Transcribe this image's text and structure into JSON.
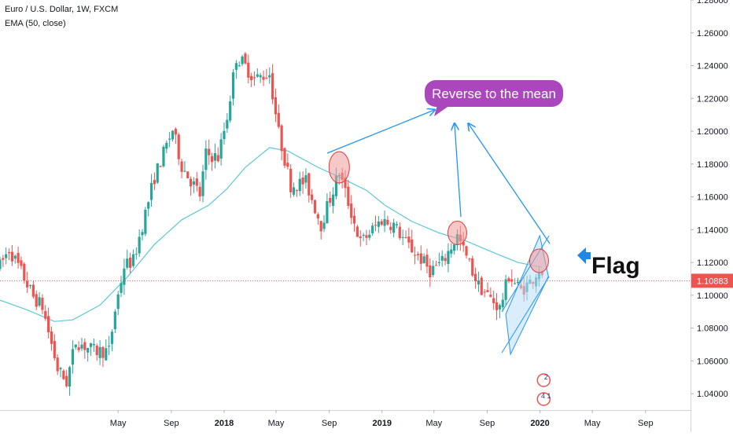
{
  "header": {
    "title": "Euro / U.S. Dollar, 1W, FXCM",
    "indicator": "EMA (50, close)"
  },
  "colors": {
    "up": "#26a69a",
    "down": "#ef5350",
    "ema": "#5bc8d8",
    "current_line": "#ef5350",
    "annotation_arrow": "#2196f3",
    "callout_bg": "#ab47bc",
    "highlight_circle": "#ef9a9a",
    "flag_fill": "#bbdefb",
    "flag_arrow": "#1e88e5"
  },
  "annotations": {
    "callout": "Reverse to the mean",
    "flag": "Flag"
  },
  "event_badges": [
    "2",
    "4 1"
  ],
  "current_price_label": "1.10883",
  "chart_data": {
    "type": "candlestick",
    "x_range": [
      "2016-08-01",
      "2020-12-14"
    ],
    "ylim": [
      1.03,
      1.28
    ],
    "y_ticks": [
      "1.28000",
      "1.26000",
      "1.24000",
      "1.22000",
      "1.20000",
      "1.18000",
      "1.16000",
      "1.14000",
      "1.12000",
      "1.10000",
      "1.08000",
      "1.06000",
      "1.04000"
    ],
    "x_ticks": [
      "May",
      "Sep",
      "2018",
      "May",
      "Sep",
      "2019",
      "May",
      "Sep",
      "2020",
      "May",
      "Sep"
    ],
    "bold_x_ticks": [
      "2018",
      "2019",
      "2020"
    ],
    "current_price": 1.10883,
    "grid": false,
    "series": [
      {
        "name": "EMA (50, close)",
        "type": "line",
        "points": [
          [
            "2016-08-01",
            1.097
          ],
          [
            "2016-10-03",
            1.091
          ],
          [
            "2016-12-05",
            1.084
          ],
          [
            "2017-01-16",
            1.085
          ],
          [
            "2017-03-20",
            1.094
          ],
          [
            "2017-05-22",
            1.111
          ],
          [
            "2017-07-24",
            1.131
          ],
          [
            "2017-09-25",
            1.146
          ],
          [
            "2017-11-27",
            1.155
          ],
          [
            "2018-01-08",
            1.165
          ],
          [
            "2018-02-19",
            1.178
          ],
          [
            "2018-04-16",
            1.19
          ],
          [
            "2018-05-28",
            1.188
          ],
          [
            "2018-08-06",
            1.178
          ],
          [
            "2018-09-17",
            1.173
          ],
          [
            "2018-11-26",
            1.164
          ],
          [
            "2019-01-07",
            1.155
          ],
          [
            "2019-03-11",
            1.145
          ],
          [
            "2019-05-13",
            1.138
          ],
          [
            "2019-07-15",
            1.133
          ],
          [
            "2019-09-16",
            1.126
          ],
          [
            "2019-11-11",
            1.12
          ],
          [
            "2020-01-06",
            1.117
          ]
        ]
      }
    ],
    "markers": [
      {
        "kind": "highlight",
        "date": "2018-09-24",
        "y": 1.178
      },
      {
        "kind": "highlight",
        "date": "2019-06-24",
        "y": 1.138
      },
      {
        "kind": "highlight",
        "date": "2019-12-30",
        "y": 1.121
      }
    ]
  }
}
